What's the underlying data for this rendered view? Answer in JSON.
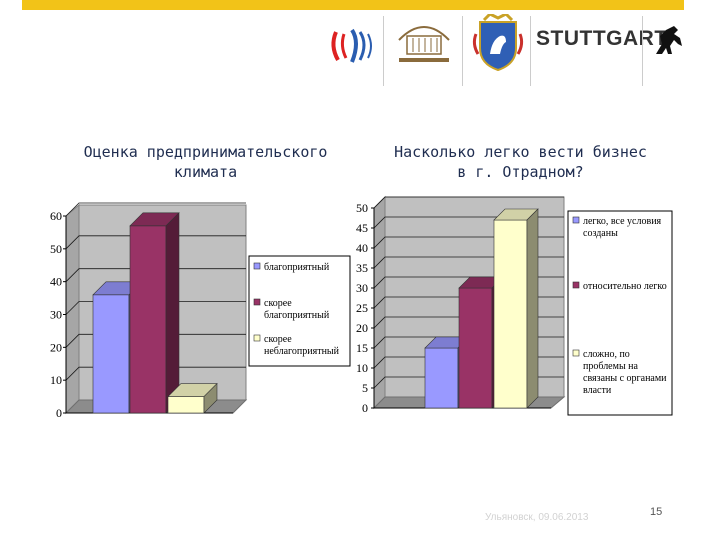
{
  "logos": {
    "stuttgart_text": "STUTTGART",
    "icons": [
      "wave-logo-icon",
      "academy-logo-icon",
      "samara-coat-of-arms-icon",
      "stuttgart-horse-icon"
    ]
  },
  "chart_data": [
    {
      "type": "bar",
      "title": "Оценка предпринимательского климата",
      "categories": [
        "благоприятный",
        "скорее благоприятный",
        "скорее неблагоприятный"
      ],
      "values": [
        36,
        57,
        5
      ],
      "ylim": [
        0,
        60
      ],
      "yticks": [
        "0",
        "10",
        "20",
        "30",
        "40",
        "50",
        "60"
      ],
      "legend": [
        "благоприятный",
        "скорее благоприятный",
        "скорее неблагоприятный"
      ],
      "legend_position": "right",
      "colors": [
        "#9999ff",
        "#993366",
        "#ffffcc"
      ],
      "style": "3d-bars-gray-wall"
    },
    {
      "type": "bar",
      "title": "Насколько легко вести бизнес в г. Отрадном?",
      "categories": [
        "легко, все условия созданы",
        "относительно легко",
        "сложно, по проблемы на связаны с органами власти"
      ],
      "values": [
        15,
        30,
        47
      ],
      "ylim": [
        0,
        50
      ],
      "yticks": [
        "0",
        "5",
        "10",
        "15",
        "20",
        "25",
        "30",
        "35",
        "40",
        "45",
        "50"
      ],
      "legend": [
        "легко, все условия созданы",
        "относительно легко",
        "сложно, по проблемы на связаны с органами власти"
      ],
      "legend_position": "right",
      "colors": [
        "#9999ff",
        "#993366",
        "#ffffcc"
      ],
      "style": "3d-bars-gray-wall"
    }
  ],
  "footer": {
    "text": "Ульяновск, 09.06.2013",
    "page_number": "15"
  }
}
